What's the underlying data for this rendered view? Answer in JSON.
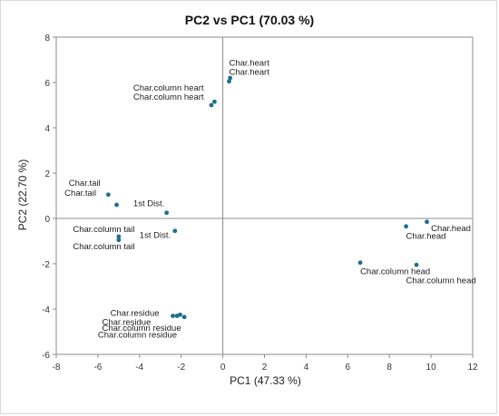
{
  "chart_data": {
    "type": "scatter",
    "title": "PC2 vs PC1 (70.03 %)",
    "xlabel": "PC1 (47.33 %)",
    "ylabel": "PC2 (22.70 %)",
    "xlim": [
      -8,
      12
    ],
    "ylim": [
      -6,
      8
    ],
    "xticks": [
      "-8",
      "-6",
      "-4",
      "-2",
      "0",
      "2",
      "4",
      "6",
      "8",
      "10",
      "12"
    ],
    "yticks": [
      "-6",
      "-4",
      "-2",
      "0",
      "2",
      "4",
      "6",
      "8"
    ],
    "grid": false,
    "marker_color": "#1f6f8b",
    "points": [
      {
        "label": "Char.heart",
        "x": 0.35,
        "y": 6.2
      },
      {
        "label": "Char.heart",
        "x": 0.3,
        "y": 6.05
      },
      {
        "label": "Char.column heart",
        "x": -0.4,
        "y": 5.15
      },
      {
        "label": "Char.column heart",
        "x": -0.55,
        "y": 5.0
      },
      {
        "label": "Char.tail",
        "x": -5.5,
        "y": 1.05
      },
      {
        "label": "Char.tail",
        "x": -5.1,
        "y": 0.6
      },
      {
        "label": "1st Dist.",
        "x": -2.7,
        "y": 0.25
      },
      {
        "label": "1st Dist.",
        "x": -2.3,
        "y": -0.55
      },
      {
        "label": "Char.column tail",
        "x": -5.0,
        "y": -0.8
      },
      {
        "label": "Char.column tail",
        "x": -5.0,
        "y": -0.95
      },
      {
        "label": "Char.head",
        "x": 9.8,
        "y": -0.15
      },
      {
        "label": "Char.head",
        "x": 8.8,
        "y": -0.35
      },
      {
        "label": "Char.column head",
        "x": 6.6,
        "y": -1.95
      },
      {
        "label": "Char.column head",
        "x": 9.3,
        "y": -2.05
      },
      {
        "label": "Char.residue",
        "x": -2.4,
        "y": -4.3
      },
      {
        "label": "Char.residue",
        "x": -2.2,
        "y": -4.3
      },
      {
        "label": "Char.column residue",
        "x": -2.05,
        "y": -4.25
      },
      {
        "label": "Char.column residue",
        "x": -1.85,
        "y": -4.35
      }
    ],
    "annotations": [
      {
        "text": "Char.heart",
        "x": 0.3,
        "y": 6.75
      },
      {
        "text": "Char.heart",
        "x": 0.3,
        "y": 6.35
      },
      {
        "text": "Char.column heart",
        "x": -4.3,
        "y": 5.65
      },
      {
        "text": "Char.column heart",
        "x": -4.3,
        "y": 5.25
      },
      {
        "text": "Char.tail",
        "x": -7.4,
        "y": 1.45
      },
      {
        "text": "Char.tail",
        "x": -7.6,
        "y": 1.0
      },
      {
        "text": "1st Dist.",
        "x": -4.3,
        "y": 0.55
      },
      {
        "text": "1st Dist.",
        "x": -4.0,
        "y": -0.85
      },
      {
        "text": "Char.column tail",
        "x": -7.2,
        "y": -0.6
      },
      {
        "text": "Char.column tail",
        "x": -7.2,
        "y": -1.35
      },
      {
        "text": "Char.head",
        "x": 10.0,
        "y": -0.55
      },
      {
        "text": "Char.head",
        "x": 8.8,
        "y": -0.9
      },
      {
        "text": "Char.column head",
        "x": 6.6,
        "y": -2.45
      },
      {
        "text": "Char.column head",
        "x": 8.8,
        "y": -2.85
      },
      {
        "text": "Char.residue",
        "x": -5.4,
        "y": -4.3
      },
      {
        "text": "Char.residue",
        "x": -5.8,
        "y": -4.7
      },
      {
        "text": "Char.column residue",
        "x": -5.8,
        "y": -4.95
      },
      {
        "text": "Char.column residue",
        "x": -6.0,
        "y": -5.25
      }
    ]
  }
}
